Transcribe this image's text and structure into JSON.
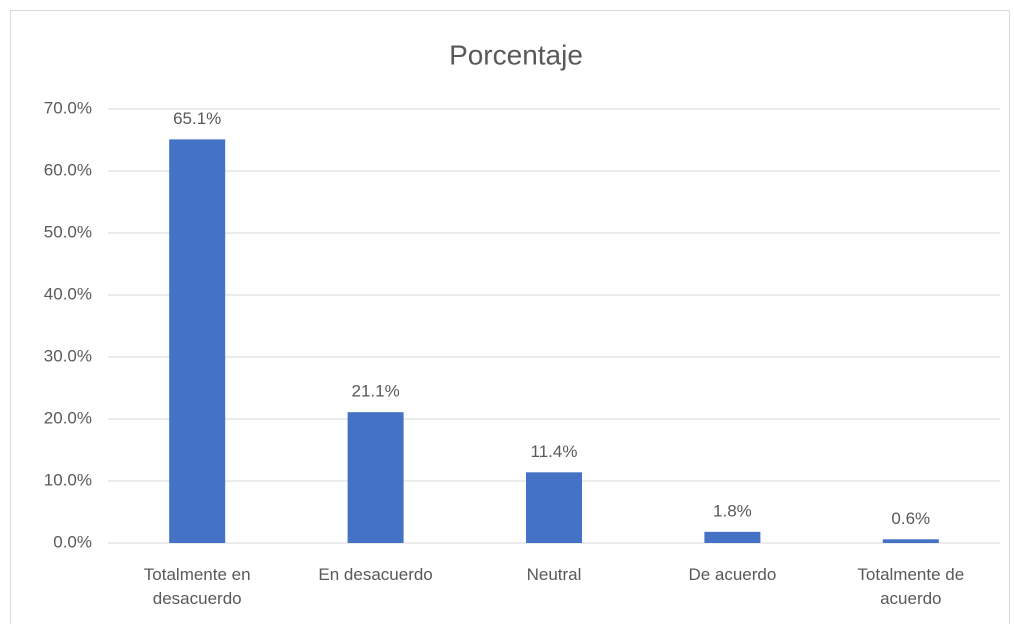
{
  "chart_data": {
    "type": "bar",
    "title": "Porcentaje",
    "categories": [
      "Totalmente en desacuerdo",
      "En desacuerdo",
      "Neutral",
      "De acuerdo",
      "Totalmente de acuerdo"
    ],
    "values": [
      65.1,
      21.1,
      11.4,
      1.8,
      0.6
    ],
    "value_labels": [
      "65.1%",
      "21.1%",
      "11.4%",
      "1.8%",
      "0.6%"
    ],
    "color": "#4472c4",
    "ylim": [
      0,
      70
    ],
    "yticks": [
      {
        "value": 0,
        "label": "0.0%"
      },
      {
        "value": 10,
        "label": "10.0%"
      },
      {
        "value": 20,
        "label": "20.0%"
      },
      {
        "value": 30,
        "label": "30.0%"
      },
      {
        "value": 40,
        "label": "40.0%"
      },
      {
        "value": 50,
        "label": "50.0%"
      },
      {
        "value": 60,
        "label": "60.0%"
      },
      {
        "value": 70,
        "label": "70.0%"
      }
    ],
    "grid": true
  }
}
